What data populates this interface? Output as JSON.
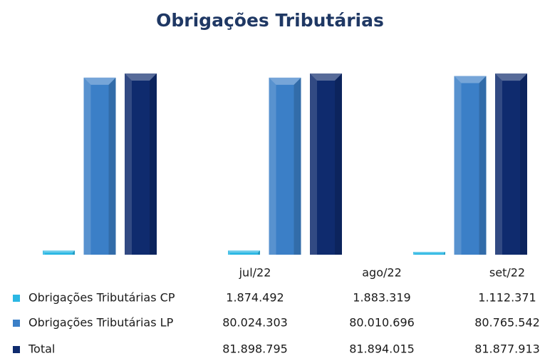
{
  "chart_data": {
    "type": "bar",
    "title": "Obrigações Tributárias",
    "categories": [
      "jul/22",
      "ago/22",
      "set/22"
    ],
    "series": [
      {
        "name": "Obrigações Tributárias CP",
        "color": "#2bb7e3",
        "values": [
          1874492,
          1883319,
          1112371
        ],
        "value_labels": [
          "1.874.492",
          "1.883.319",
          "1.112.371"
        ]
      },
      {
        "name": "Obrigações Tributárias LP",
        "color": "#3b7fc7",
        "values": [
          80024303,
          80010696,
          80765542
        ],
        "value_labels": [
          "80.024.303",
          "80.010.696",
          "80.765.542"
        ]
      },
      {
        "name": "Total",
        "color": "#0f2b6e",
        "values": [
          81898795,
          81894015,
          81877913
        ],
        "value_labels": [
          "81.898.795",
          "81.894.015",
          "81.877.913"
        ]
      }
    ]
  }
}
